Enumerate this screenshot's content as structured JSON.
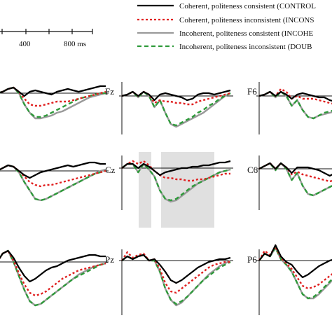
{
  "chart_data": {
    "type": "line",
    "scale": {
      "ticks": [
        "400",
        "800 ms"
      ]
    },
    "legend": {
      "position": "top-right",
      "entries": [
        {
          "label": "Coherent, politeness consistent (CONTROL",
          "color": "#000000",
          "style": "solid"
        },
        {
          "label": "Coherent, politeness inconsistent (INCONS",
          "color": "#e02020",
          "style": "dotted"
        },
        {
          "label": "Incoherent, politeness consistent (INCOHE",
          "color": "#9a9a9a",
          "style": "solid"
        },
        {
          "label": "Incoherent, politeness inconsistent (DOUB",
          "color": "#2e9a3a",
          "style": "dashed"
        }
      ]
    },
    "time_ms": [
      0,
      50,
      100,
      150,
      200,
      250,
      300,
      350,
      400,
      450,
      500,
      550,
      600,
      650,
      700,
      750,
      800,
      850,
      900,
      950,
      1000
    ],
    "panels": [
      {
        "label": "",
        "series": {
          "control": [
            0,
            1,
            3,
            4,
            1,
            -2,
            1,
            2,
            1,
            0,
            -1,
            1,
            2,
            3,
            2,
            1,
            2,
            3,
            4,
            5,
            5
          ],
          "inconsistent": [
            0,
            1,
            3,
            4,
            1,
            -4,
            -8,
            -9,
            -9,
            -8,
            -7,
            -6,
            -6,
            -6,
            -5,
            -4,
            -3,
            -2,
            -1,
            0,
            1
          ],
          "incoherent": [
            0,
            1,
            3,
            4,
            0,
            -8,
            -14,
            -18,
            -18,
            -17,
            -16,
            -14,
            -13,
            -11,
            -9,
            -7,
            -5,
            -3,
            -2,
            -1,
            0
          ],
          "double": [
            0,
            1,
            3,
            4,
            0,
            -8,
            -14,
            -17,
            -17,
            -16,
            -14,
            -12,
            -10,
            -8,
            -6,
            -4,
            -3,
            -2,
            -1,
            0,
            0
          ]
        }
      },
      {
        "label": "Fz",
        "series": {
          "control": [
            0,
            1,
            3,
            0,
            3,
            1,
            -3,
            1,
            2,
            1,
            0,
            -1,
            -3,
            -2,
            1,
            2,
            2,
            1,
            2,
            3,
            4
          ],
          "inconsistent": [
            0,
            1,
            3,
            0,
            3,
            1,
            -5,
            -3,
            -4,
            -4,
            -5,
            -5,
            -6,
            -6,
            -4,
            -3,
            -2,
            -1,
            0,
            1,
            2
          ],
          "incoherent": [
            0,
            1,
            3,
            -1,
            3,
            0,
            -8,
            -3,
            -12,
            -20,
            -22,
            -20,
            -18,
            -16,
            -14,
            -12,
            -9,
            -6,
            -3,
            0,
            2
          ],
          "double": [
            0,
            1,
            3,
            -1,
            3,
            0,
            -8,
            -3,
            -12,
            -20,
            -21,
            -19,
            -17,
            -15,
            -12,
            -10,
            -7,
            -5,
            -2,
            0,
            2
          ]
        }
      },
      {
        "label": "F6",
        "series": {
          "control": [
            0,
            1,
            3,
            0,
            3,
            1,
            -2,
            1,
            2,
            1,
            0,
            -1,
            -1,
            -3,
            -4,
            -4,
            -3,
            -3,
            -4,
            -5,
            -4
          ],
          "inconsistent": [
            0,
            1,
            3,
            0,
            5,
            3,
            -2,
            0,
            -2,
            -2,
            -2,
            -3,
            -4,
            -5,
            -6,
            -7,
            -7,
            -6,
            -6,
            -6,
            -5
          ],
          "incoherent": [
            0,
            1,
            3,
            -1,
            3,
            0,
            -7,
            -3,
            -10,
            -15,
            -16,
            -14,
            -13,
            -12,
            -11,
            -10,
            -9,
            -9,
            -8,
            -7,
            -6
          ],
          "double": [
            0,
            1,
            3,
            -1,
            3,
            0,
            -7,
            -3,
            -10,
            -15,
            -16,
            -14,
            -12,
            -11,
            -10,
            -9,
            -9,
            -8,
            -7,
            -6,
            -5
          ]
        }
      },
      {
        "label": "",
        "series": {
          "control": [
            0,
            2,
            4,
            3,
            0,
            -3,
            -5,
            -3,
            -1,
            0,
            1,
            2,
            3,
            4,
            3,
            4,
            5,
            6,
            6,
            5,
            5
          ],
          "inconsistent": [
            0,
            2,
            4,
            3,
            0,
            -4,
            -8,
            -10,
            -11,
            -10,
            -10,
            -9,
            -8,
            -7,
            -6,
            -5,
            -4,
            -3,
            -2,
            -1,
            0
          ],
          "incoherent": [
            0,
            2,
            4,
            3,
            -1,
            -8,
            -14,
            -20,
            -21,
            -20,
            -18,
            -16,
            -14,
            -12,
            -10,
            -8,
            -6,
            -4,
            -2,
            0,
            1
          ],
          "double": [
            0,
            2,
            4,
            3,
            -1,
            -8,
            -14,
            -20,
            -21,
            -20,
            -18,
            -16,
            -14,
            -12,
            -10,
            -8,
            -6,
            -4,
            -2,
            -1,
            0
          ]
        }
      },
      {
        "label": "Cz",
        "series": {
          "control": [
            0,
            3,
            3,
            0,
            3,
            1,
            -2,
            -5,
            -3,
            -2,
            -1,
            0,
            0,
            1,
            1,
            2,
            2,
            3,
            4,
            4,
            5
          ],
          "inconsistent": [
            0,
            3,
            5,
            3,
            5,
            2,
            -2,
            -5,
            -7,
            -7,
            -8,
            -8,
            -9,
            -9,
            -8,
            -8,
            -7,
            -6,
            -5,
            -4,
            -4
          ],
          "incoherent": [
            0,
            3,
            3,
            -3,
            3,
            -1,
            -6,
            -16,
            -22,
            -24,
            -23,
            -20,
            -17,
            -14,
            -11,
            -9,
            -7,
            -5,
            -3,
            -2,
            -1
          ],
          "double": [
            0,
            3,
            3,
            -3,
            3,
            -1,
            -6,
            -16,
            -22,
            -23,
            -22,
            -19,
            -16,
            -13,
            -11,
            -9,
            -7,
            -5,
            -3,
            -2,
            -1
          ]
        }
      },
      {
        "label": "C6",
        "series": {
          "control": [
            0,
            2,
            4,
            0,
            4,
            1,
            -3,
            1,
            1,
            1,
            0,
            -1,
            -3,
            -5,
            -3,
            -1,
            0,
            1,
            2,
            3,
            3
          ],
          "inconsistent": [
            0,
            2,
            4,
            0,
            4,
            1,
            -4,
            -2,
            -4,
            -5,
            -6,
            -7,
            -8,
            -9,
            -8,
            -7,
            -6,
            -5,
            -4,
            -3,
            -3
          ],
          "incoherent": [
            0,
            2,
            4,
            -1,
            4,
            0,
            -8,
            -3,
            -12,
            -18,
            -19,
            -17,
            -15,
            -13,
            -11,
            -9,
            -7,
            -5,
            -4,
            -3,
            -2
          ],
          "double": [
            0,
            2,
            4,
            -1,
            4,
            0,
            -8,
            -3,
            -12,
            -18,
            -19,
            -17,
            -15,
            -13,
            -11,
            -9,
            -7,
            -5,
            -3,
            -2,
            -1
          ]
        }
      },
      {
        "label": "",
        "series": {
          "control": [
            0,
            6,
            8,
            3,
            -4,
            -10,
            -14,
            -12,
            -9,
            -6,
            -4,
            -3,
            -1,
            1,
            2,
            3,
            4,
            5,
            5,
            4,
            4
          ],
          "inconsistent": [
            0,
            6,
            8,
            1,
            -8,
            -16,
            -22,
            -24,
            -23,
            -21,
            -18,
            -15,
            -12,
            -10,
            -8,
            -6,
            -5,
            -4,
            -3,
            -2,
            -1
          ],
          "incoherent": [
            0,
            6,
            8,
            0,
            -10,
            -20,
            -28,
            -31,
            -30,
            -27,
            -24,
            -21,
            -18,
            -15,
            -12,
            -9,
            -7,
            -5,
            -3,
            -2,
            -1
          ],
          "double": [
            0,
            6,
            8,
            0,
            -10,
            -20,
            -28,
            -31,
            -30,
            -27,
            -24,
            -21,
            -18,
            -15,
            -12,
            -10,
            -8,
            -6,
            -4,
            -2,
            -1
          ]
        }
      },
      {
        "label": "Pz",
        "series": {
          "control": [
            0,
            3,
            1,
            3,
            4,
            0,
            1,
            -3,
            -8,
            -14,
            -16,
            -14,
            -11,
            -8,
            -5,
            -3,
            -1,
            0,
            1,
            1,
            2
          ],
          "inconsistent": [
            0,
            6,
            2,
            4,
            5,
            0,
            1,
            -6,
            -16,
            -22,
            -23,
            -20,
            -17,
            -14,
            -11,
            -8,
            -5,
            -3,
            -2,
            -1,
            -1
          ],
          "incoherent": [
            0,
            3,
            1,
            3,
            4,
            0,
            0,
            -8,
            -20,
            -28,
            -32,
            -30,
            -26,
            -22,
            -18,
            -14,
            -10,
            -7,
            -4,
            -2,
            0
          ],
          "double": [
            0,
            3,
            1,
            3,
            4,
            0,
            0,
            -8,
            -20,
            -28,
            -31,
            -29,
            -26,
            -22,
            -18,
            -14,
            -11,
            -8,
            -5,
            -3,
            -1
          ]
        }
      },
      {
        "label": "P6",
        "series": {
          "control": [
            0,
            5,
            3,
            11,
            3,
            -1,
            -3,
            -8,
            -12,
            -10,
            -7,
            -4,
            -2,
            0,
            1,
            2,
            2,
            3,
            4,
            4,
            5
          ],
          "inconsistent": [
            0,
            7,
            4,
            10,
            2,
            -2,
            -6,
            -12,
            -18,
            -20,
            -19,
            -17,
            -14,
            -11,
            -8,
            -6,
            -4,
            -3,
            -2,
            -1,
            0
          ],
          "incoherent": [
            0,
            5,
            3,
            9,
            1,
            -3,
            -8,
            -16,
            -24,
            -27,
            -27,
            -24,
            -20,
            -16,
            -12,
            -9,
            -6,
            -4,
            -2,
            -1,
            0
          ],
          "double": [
            0,
            5,
            3,
            9,
            1,
            -3,
            -8,
            -16,
            -24,
            -27,
            -26,
            -23,
            -19,
            -15,
            -11,
            -8,
            -5,
            -3,
            -2,
            -1,
            0
          ]
        }
      }
    ]
  }
}
